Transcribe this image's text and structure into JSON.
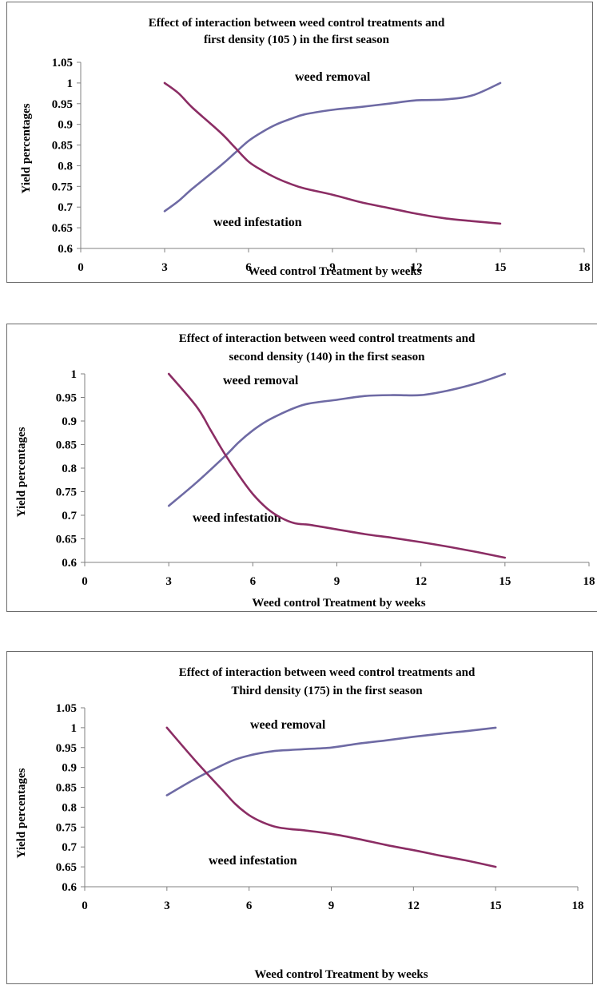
{
  "colors": {
    "removal": "#6e6aa4",
    "infestation": "#8b2d64",
    "axis": "#808080"
  },
  "chart_data": [
    {
      "type": "line",
      "title_lines": [
        "Effect of  interaction between weed control treatments and",
        "first density  (105 ) in the first season"
      ],
      "xlabel": "Weed control Treatment by weeks",
      "ylabel": "Yield percentages",
      "xlim": [
        0,
        18
      ],
      "ylim": [
        0.6,
        1.05
      ],
      "xticks": [
        "0",
        "3",
        "6",
        "9",
        "12",
        "15",
        "18"
      ],
      "yticks": [
        "0.6",
        "0.65",
        "0.7",
        "0.75",
        "0.8",
        "0.85",
        "0.9",
        "0.95",
        "1",
        "1.05"
      ],
      "annotations": [
        "weed removal",
        "weed infestation"
      ],
      "series": [
        {
          "key": "removal",
          "x": [
            3,
            3.5,
            4,
            5,
            5.5,
            6,
            6.5,
            7,
            7.5,
            8,
            9,
            10,
            11,
            12,
            13,
            14,
            15
          ],
          "y": [
            0.69,
            0.715,
            0.745,
            0.8,
            0.83,
            0.86,
            0.882,
            0.9,
            0.913,
            0.924,
            0.935,
            0.942,
            0.95,
            0.958,
            0.96,
            0.97,
            1.0
          ]
        },
        {
          "key": "infestation",
          "x": [
            3,
            3.5,
            4,
            5,
            5.5,
            6,
            6.5,
            7,
            7.5,
            8,
            9,
            10,
            11,
            12,
            13,
            14,
            15
          ],
          "y": [
            1.0,
            0.975,
            0.94,
            0.88,
            0.845,
            0.81,
            0.788,
            0.77,
            0.756,
            0.745,
            0.73,
            0.712,
            0.698,
            0.684,
            0.673,
            0.666,
            0.66
          ]
        }
      ]
    },
    {
      "type": "line",
      "title_lines": [
        "Effect of interaction between weed control treatments and",
        "second density  (140) in the first season"
      ],
      "xlabel": "Weed control Treatment by weeks",
      "ylabel": "Yield percentages",
      "xlim": [
        0,
        18
      ],
      "ylim": [
        0.6,
        1
      ],
      "xticks": [
        "0",
        "3",
        "6",
        "9",
        "12",
        "15",
        "18"
      ],
      "yticks": [
        "0.6",
        "0.65",
        "0.7",
        "0.75",
        "0.8",
        "0.85",
        "0.9",
        "0.95",
        "1"
      ],
      "annotations": [
        "weed removal",
        "weed infestation"
      ],
      "series": [
        {
          "key": "removal",
          "x": [
            3,
            4,
            5,
            5.5,
            6,
            6.5,
            7,
            7.5,
            8,
            9,
            10,
            11,
            12,
            13,
            14,
            15
          ],
          "y": [
            0.72,
            0.77,
            0.825,
            0.855,
            0.88,
            0.9,
            0.915,
            0.928,
            0.937,
            0.945,
            0.953,
            0.955,
            0.955,
            0.965,
            0.98,
            1.0
          ]
        },
        {
          "key": "infestation",
          "x": [
            3,
            4,
            4.5,
            5,
            5.5,
            6,
            6.5,
            7,
            7.5,
            8,
            8.5,
            9,
            10,
            11,
            12,
            13,
            14,
            15
          ],
          "y": [
            1.0,
            0.93,
            0.88,
            0.83,
            0.785,
            0.745,
            0.715,
            0.695,
            0.683,
            0.68,
            0.675,
            0.67,
            0.66,
            0.652,
            0.643,
            0.633,
            0.622,
            0.61
          ]
        }
      ]
    },
    {
      "type": "line",
      "title_lines": [
        "Effect of interaction between weed control treatments and",
        "Third density  (175) in the first season"
      ],
      "xlabel": "Weed control Treatment by weeks",
      "ylabel": "Yield percentages",
      "xlim": [
        0,
        18
      ],
      "ylim": [
        0.6,
        1.05
      ],
      "xticks": [
        "0",
        "3",
        "6",
        "9",
        "12",
        "15",
        "18"
      ],
      "yticks": [
        "0.6",
        "0.65",
        "0.7",
        "0.75",
        "0.8",
        "0.85",
        "0.9",
        "0.95",
        "1",
        "1.05"
      ],
      "annotations": [
        "weed removal",
        "weed infestation"
      ],
      "series": [
        {
          "key": "removal",
          "x": [
            3,
            4,
            5,
            5.5,
            6,
            6.5,
            7,
            7.5,
            8,
            9,
            10,
            11,
            12,
            13,
            14,
            15
          ],
          "y": [
            0.83,
            0.87,
            0.905,
            0.92,
            0.93,
            0.937,
            0.942,
            0.944,
            0.946,
            0.95,
            0.96,
            0.968,
            0.977,
            0.985,
            0.992,
            1.0
          ]
        },
        {
          "key": "infestation",
          "x": [
            3,
            4,
            5,
            5.5,
            6,
            6.5,
            7,
            7.5,
            8,
            9,
            10,
            11,
            12,
            13,
            14,
            15
          ],
          "y": [
            1.0,
            0.92,
            0.845,
            0.808,
            0.78,
            0.762,
            0.75,
            0.745,
            0.742,
            0.733,
            0.72,
            0.705,
            0.692,
            0.678,
            0.665,
            0.65
          ]
        }
      ]
    }
  ]
}
